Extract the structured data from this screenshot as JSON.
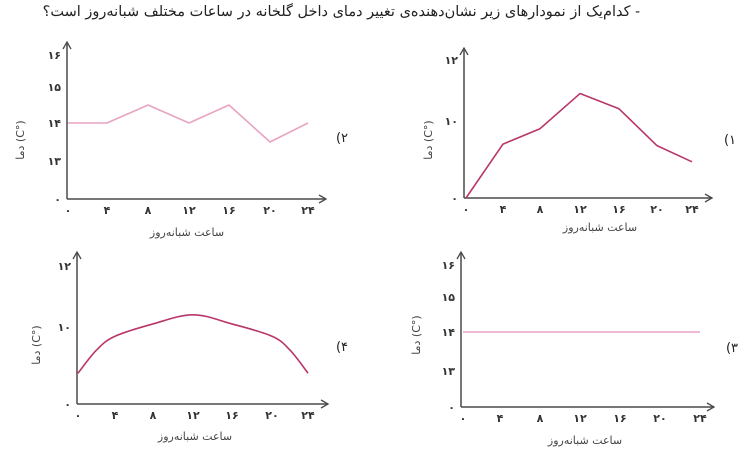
{
  "question": "- کدام‌یک از نمودارهای زیر نشان‌دهنده‌ی تغییر دمای داخل گلخانه در ساعات مختلف شبانه‌روز است؟",
  "colors": {
    "axis": "#4a4a4a",
    "pink": "#e9a3c3",
    "crimson": "#b8366a"
  },
  "chart_data": [
    {
      "option_label": "(۱",
      "type": "line",
      "color": "#b8366a",
      "xlabel": "ساعت شبانه‌روز",
      "ylabel": "دما (C°)",
      "x_ticks": [
        {
          "v": 0,
          "t": "۰"
        },
        {
          "v": 4,
          "t": "۴"
        },
        {
          "v": 8,
          "t": "۸"
        },
        {
          "v": 12,
          "t": "۱۲"
        },
        {
          "v": 16,
          "t": "۱۶"
        },
        {
          "v": 20,
          "t": "۲۰"
        },
        {
          "v": 24,
          "t": "۲۴"
        }
      ],
      "y_ticks": [
        {
          "v": 0,
          "t": "۰"
        },
        {
          "v": 10,
          "t": "۱۰"
        },
        {
          "v": 12,
          "t": "۱۲"
        }
      ],
      "x": [
        0,
        4,
        8,
        12,
        16,
        20,
        24
      ],
      "y": [
        0,
        7,
        9,
        10.9,
        10.4,
        6.8,
        4.7
      ]
    },
    {
      "option_label": "(۲",
      "type": "line",
      "color": "#e9a3c3",
      "xlabel": "ساعت شبانه‌روز",
      "ylabel": "دما (C°)",
      "x_ticks": [
        {
          "v": 0,
          "t": "۰"
        },
        {
          "v": 4,
          "t": "۴"
        },
        {
          "v": 8,
          "t": "۸"
        },
        {
          "v": 12,
          "t": "۱۲"
        },
        {
          "v": 16,
          "t": "۱۶"
        },
        {
          "v": 20,
          "t": "۲۰"
        },
        {
          "v": 24,
          "t": "۲۴"
        }
      ],
      "y_ticks": [
        {
          "v": 0,
          "t": "۰"
        },
        {
          "v": 13,
          "t": "۱۳"
        },
        {
          "v": 14,
          "t": "۱۴"
        },
        {
          "v": 15,
          "t": "۱۵"
        },
        {
          "v": 16,
          "t": "۱۶"
        }
      ],
      "x": [
        0,
        4,
        8,
        12,
        16,
        20,
        24
      ],
      "y": [
        14,
        14,
        14.5,
        14,
        14.5,
        13.5,
        14
      ]
    },
    {
      "option_label": "(۳",
      "type": "line",
      "color": "#e9a3c3",
      "xlabel": "ساعت شبانه‌روز",
      "ylabel": "دما (C°)",
      "x_ticks": [
        {
          "v": 0,
          "t": "۰"
        },
        {
          "v": 4,
          "t": "۴"
        },
        {
          "v": 8,
          "t": "۸"
        },
        {
          "v": 12,
          "t": "۱۲"
        },
        {
          "v": 16,
          "t": "۱۶"
        },
        {
          "v": 20,
          "t": "۲۰"
        },
        {
          "v": 24,
          "t": "۲۴"
        }
      ],
      "y_ticks": [
        {
          "v": 0,
          "t": "۰"
        },
        {
          "v": 13,
          "t": "۱۳"
        },
        {
          "v": 14,
          "t": "۱۴"
        },
        {
          "v": 15,
          "t": "۱۵"
        },
        {
          "v": 16,
          "t": "۱۶"
        }
      ],
      "x": [
        0,
        24
      ],
      "y": [
        14,
        14
      ]
    },
    {
      "option_label": "(۴",
      "type": "line",
      "color": "#b8366a",
      "xlabel": "ساعت شبانه‌روز",
      "ylabel": "دما (C°)",
      "x_ticks": [
        {
          "v": 0,
          "t": "۰"
        },
        {
          "v": 4,
          "t": "۴"
        },
        {
          "v": 8,
          "t": "۸"
        },
        {
          "v": 12,
          "t": "۱۲"
        },
        {
          "v": 16,
          "t": "۱۶"
        },
        {
          "v": 20,
          "t": "۲۰"
        },
        {
          "v": 24,
          "t": "۲۴"
        }
      ],
      "y_ticks": [
        {
          "v": 0,
          "t": "۰"
        },
        {
          "v": 10,
          "t": "۱۰"
        },
        {
          "v": 12,
          "t": "۱۲"
        }
      ],
      "x": [
        0,
        2,
        4,
        8,
        12,
        16,
        20,
        22,
        24
      ],
      "y": [
        4,
        7,
        8.8,
        10.1,
        10.4,
        10.1,
        8.8,
        7,
        4
      ]
    }
  ]
}
